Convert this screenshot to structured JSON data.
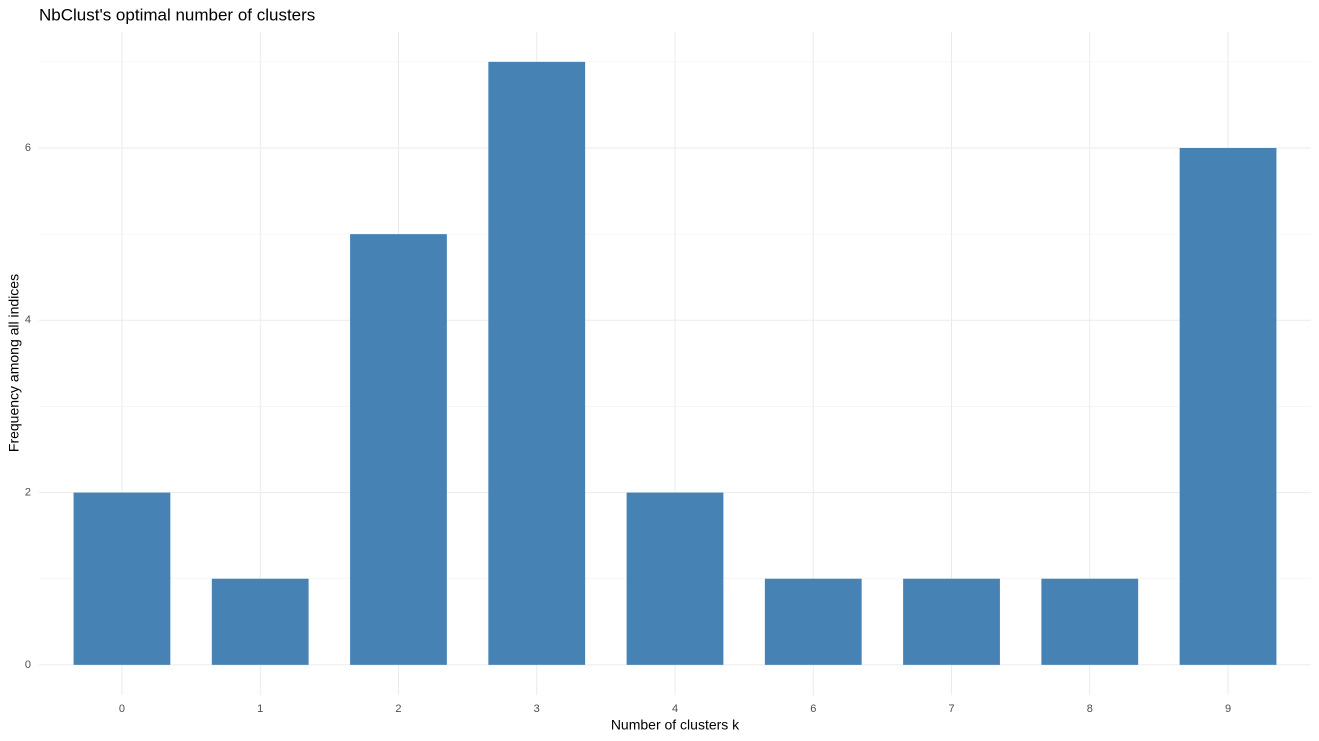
{
  "chart_data": {
    "type": "bar",
    "title": "NbClust's optimal number of clusters",
    "x_label": "Number of clusters k",
    "y_label": "Frequency among all indices",
    "categories": [
      "0",
      "1",
      "2",
      "3",
      "4",
      "6",
      "7",
      "8",
      "9"
    ],
    "values": [
      2,
      1,
      5,
      7,
      2,
      1,
      1,
      1,
      6
    ],
    "color": "#4682b4",
    "ylim": [
      -0.35,
      7.35
    ],
    "yticks": [
      0,
      2,
      4,
      6
    ],
    "y_minor_ticks": [
      1,
      3,
      5,
      7
    ],
    "grid": true
  }
}
